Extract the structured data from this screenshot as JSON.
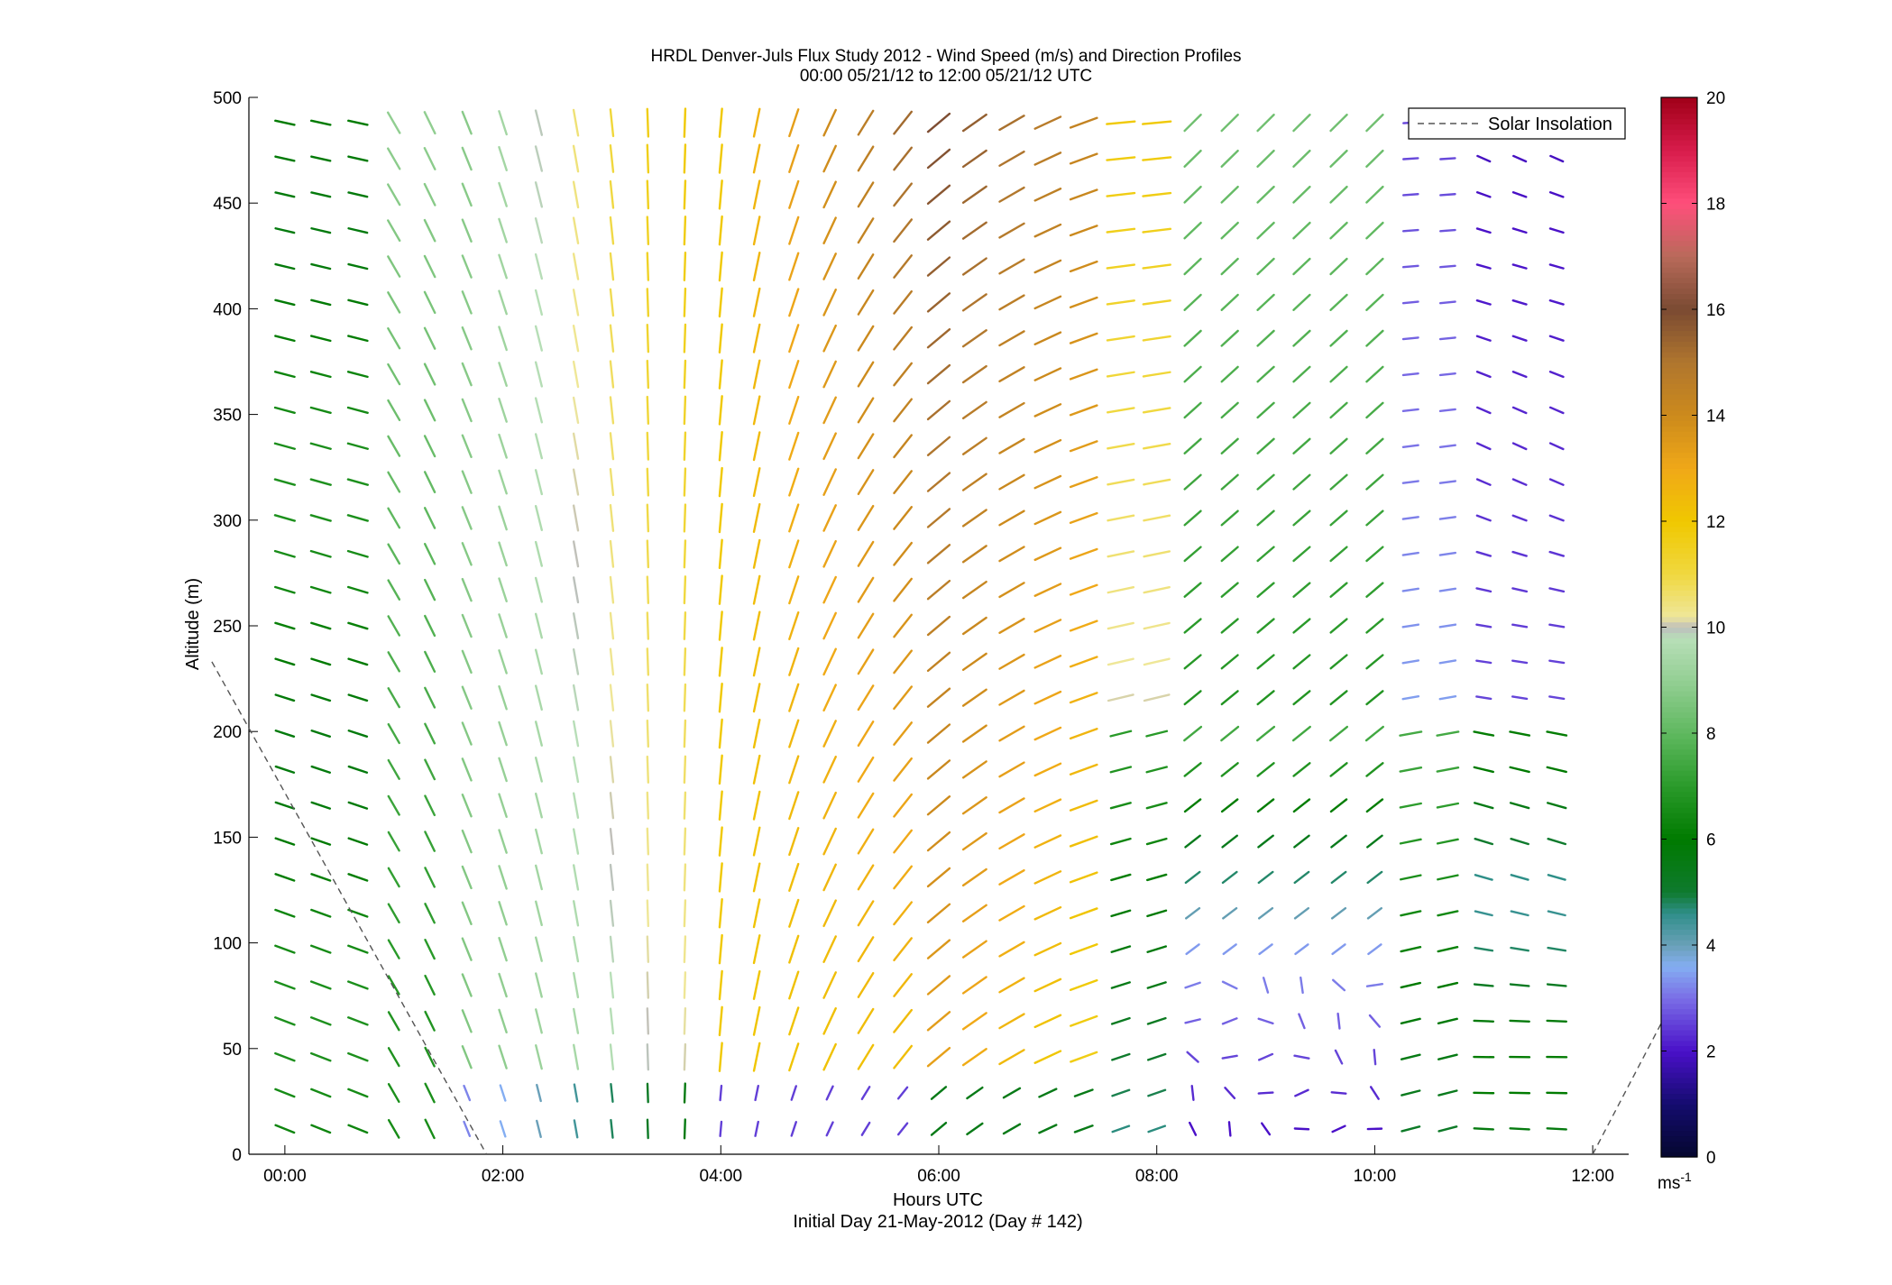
{
  "chart_data": {
    "type": "scatter",
    "title": "HRDL Denver-Juls Flux Study 2012 - Wind Speed (m/s) and Direction Profiles",
    "subtitle": "00:00 05/21/12 to 12:00 05/21/12  UTC",
    "xlabel": "Hours UTC",
    "xlabel2": "Initial Day 21-May-2012 (Day # 142)",
    "ylabel": "Altitude (m)",
    "xlim": [
      -0.33,
      12.33
    ],
    "ylim": [
      0,
      500
    ],
    "x_ticks": [
      0,
      2,
      4,
      6,
      8,
      10,
      12
    ],
    "x_tick_labels": [
      "00:00",
      "02:00",
      "04:00",
      "06:00",
      "08:00",
      "10:00",
      "12:00"
    ],
    "y_ticks": [
      0,
      50,
      100,
      150,
      200,
      250,
      300,
      350,
      400,
      450,
      500
    ],
    "y_tick_labels": [
      "0",
      "50",
      "100",
      "150",
      "200",
      "250",
      "300",
      "350",
      "400",
      "450",
      "500"
    ],
    "legend": {
      "label": "Solar Insolation",
      "placement": "top-right",
      "style": "dashed",
      "color": "#555555"
    },
    "solar_insolation": [
      {
        "segment": 1,
        "points": [
          [
            -0.67,
            233
          ],
          [
            1.85,
            0
          ]
        ]
      },
      {
        "segment": 2,
        "points": [
          [
            12.0,
            0
          ],
          [
            12.67,
            66
          ]
        ]
      }
    ],
    "colorbar": {
      "range": [
        0,
        20
      ],
      "ticks": [
        0,
        2,
        4,
        6,
        8,
        10,
        12,
        14,
        16,
        18,
        20
      ],
      "tick_labels": [
        "0",
        "2",
        "4",
        "6",
        "8",
        "10",
        "12",
        "14",
        "16",
        "18",
        "20"
      ],
      "unit_base": "ms",
      "unit_exp": "-1",
      "stops": [
        [
          0,
          "#05072e"
        ],
        [
          1.0,
          "#140c6e"
        ],
        [
          2.0,
          "#4a10c8"
        ],
        [
          3.0,
          "#7a6ee6"
        ],
        [
          3.6,
          "#84aef2"
        ],
        [
          4.0,
          "#6aa0b8"
        ],
        [
          4.6,
          "#2f8f8a"
        ],
        [
          5.0,
          "#0f7a2e"
        ],
        [
          6.0,
          "#007a00"
        ],
        [
          7.0,
          "#2a9a2a"
        ],
        [
          8.0,
          "#5fb85f"
        ],
        [
          9.0,
          "#94cf94"
        ],
        [
          9.8,
          "#b8dfb8"
        ],
        [
          10.0,
          "#bdbdbd"
        ],
        [
          10.2,
          "#efe79a"
        ],
        [
          11.0,
          "#f0d840"
        ],
        [
          12.0,
          "#f0c800"
        ],
        [
          13.0,
          "#f0a818"
        ],
        [
          14.0,
          "#cc8a1c"
        ],
        [
          15.0,
          "#b0762e"
        ],
        [
          16.0,
          "#7a4a32"
        ],
        [
          17.0,
          "#b86a5a"
        ],
        [
          18.0,
          "#ff4f7b"
        ],
        [
          19.0,
          "#d81c4c"
        ],
        [
          20.0,
          "#a00018"
        ]
      ]
    },
    "field_description": "wind barbs: speed color-coded 0-20 m/s, direction as line orientation",
    "wind_field": {
      "times": [
        0,
        0.33,
        0.67,
        1.0,
        1.33,
        1.67,
        2.0,
        2.33,
        2.67,
        3.0,
        3.33,
        3.67,
        4.0,
        4.33,
        4.67,
        5.0,
        5.33,
        5.67,
        6.0,
        6.33,
        6.67,
        7.0,
        7.33,
        7.67,
        8.0,
        8.33,
        8.67,
        9.0,
        9.33,
        9.67,
        10.0,
        10.33,
        10.67,
        11.0,
        11.33,
        11.67
      ],
      "altitudes_first": 12,
      "altitudes_step": 17,
      "altitudes_count": 29
    }
  }
}
